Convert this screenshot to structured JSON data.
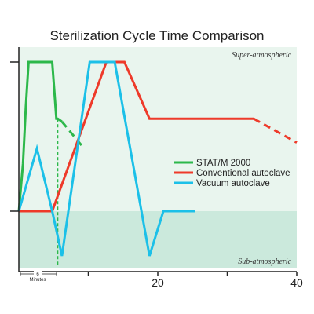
{
  "chart_data": {
    "type": "line",
    "title": "Sterilization Cycle Time Comparison",
    "xlabel": "",
    "ylabel": "",
    "xlim": [
      0,
      40
    ],
    "x_ticks": [
      10,
      20,
      30,
      40
    ],
    "x_tick_labels": [
      "",
      "20",
      "",
      "40"
    ],
    "y_levels": [
      "sub",
      "atm",
      "max"
    ],
    "regions": {
      "upper": {
        "label": "Super-atmospheric",
        "color": "#e9f5ee"
      },
      "lower": {
        "label": "Sub-atmospheric",
        "color": "#cbe9dc"
      }
    },
    "scale_marker": {
      "label": "6",
      "unit": "Minutes",
      "from": 0,
      "to": 6
    },
    "legend_position": "right",
    "series": [
      {
        "name": "STAT/M 2000",
        "color": "#2cb84a",
        "points": [
          [
            0,
            0.0
          ],
          [
            0.6,
            0.32
          ],
          [
            1.0,
            0.7
          ],
          [
            1.4,
            1.0
          ],
          [
            4.8,
            1.0
          ],
          [
            5.4,
            0.62
          ],
          [
            5.6,
            0.62
          ],
          [
            6.2,
            0.6
          ]
        ],
        "dashed_points": [
          [
            6.2,
            0.6
          ],
          [
            9.4,
            0.42
          ]
        ],
        "drop_line": {
          "x": 5.6,
          "from": 0.62,
          "to": -0.37
        }
      },
      {
        "name": "Conventional autoclave",
        "color": "#ee3a2a",
        "points": [
          [
            0,
            0.0
          ],
          [
            4.8,
            0.0
          ],
          [
            12.6,
            1.0
          ],
          [
            15.2,
            1.0
          ],
          [
            18.8,
            0.62
          ],
          [
            33.8,
            0.62
          ]
        ],
        "dashed_points": [
          [
            33.8,
            0.62
          ],
          [
            40.0,
            0.46
          ]
        ]
      },
      {
        "name": "Vacuum autoclave",
        "color": "#1cc0e8",
        "points": [
          [
            0,
            0.0
          ],
          [
            2.6,
            0.42
          ],
          [
            4.8,
            0.0
          ],
          [
            6.2,
            -0.3
          ],
          [
            10.2,
            1.0
          ],
          [
            13.8,
            1.0
          ],
          [
            18.8,
            -0.3
          ],
          [
            20.8,
            0.0
          ],
          [
            25.4,
            0.0
          ]
        ]
      }
    ]
  }
}
